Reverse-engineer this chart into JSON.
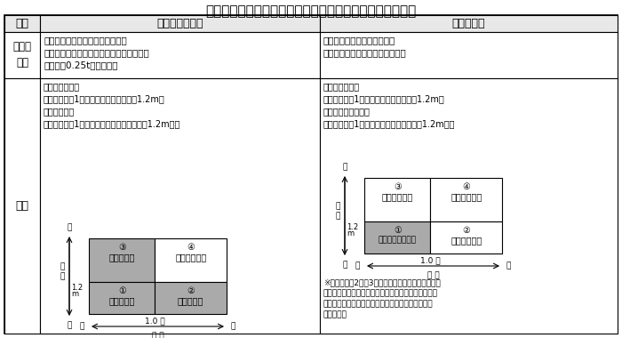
{
  "title": "エレベーター等の労働安全衛生法と建築基準法による区分",
  "col_headers": [
    "項目",
    "労働安全衛生法",
    "建築基準法"
  ],
  "row1_label": "適用の\n対象",
  "row1_col2": "工場等に設置されるエレベーター\n（一般公衆の用に供されるものは除く）で\n積載荷重0.25t以上のもの",
  "row1_col3": "人又は荷物を運搬する昇降機\n（用途、積載荷重にかかわらず）",
  "row2_label": "区分",
  "row2_col2_text": "・エレベーター\n　かごの面積1平方メートル超かつ高さ1.2m超\n・簡易リフト\n　かごの面積1平方メートル以下または高さ1.2m以下",
  "row2_col3_text": "・エレベーター\n　かごの面積1平方メートル超又は高さ1.2m超\n・小荷物専用昇降機\n　かごの面積1平方メートル以下かつ高さ1.2m以下",
  "note": "※丸付き数字2及び3は労働安全衛生法では簡易リフ\nトですが、建築基準法ではエレベーターとなるため、\n建築基準法におけるエレベーターの構造規定が適用\nされます。",
  "d1_q3_label": "③\n簡易リフト",
  "d1_q4_label": "④\nエレベーター",
  "d1_q1_label": "①\n簡易リフト",
  "d1_q2_label": "②\n簡易リフト",
  "d2_q3_label": "③\nエレベーター",
  "d2_q4_label": "④\nエレベーター",
  "d2_q1_label": "①\n小荷物専用昇降機",
  "d2_q2_label": "②\nエレベーター",
  "label_taka": "高",
  "label_hikui": "低",
  "label_taka2": "高\nさ",
  "label_m": "m",
  "label_12m": "1.2",
  "label_10m": "1.0 ㎡",
  "label_shou": "小",
  "label_dai": "大",
  "label_menseki": "面 積",
  "bg_color": "#ffffff",
  "header_bg": "#e8e8e8",
  "gray_fill": "#aaaaaa",
  "border_color": "#000000",
  "title_fontsize": 11,
  "header_fontsize": 9,
  "body_fontsize": 7.5,
  "small_fontsize": 7,
  "diagram_fontsize": 7,
  "axis_fontsize": 6.5
}
